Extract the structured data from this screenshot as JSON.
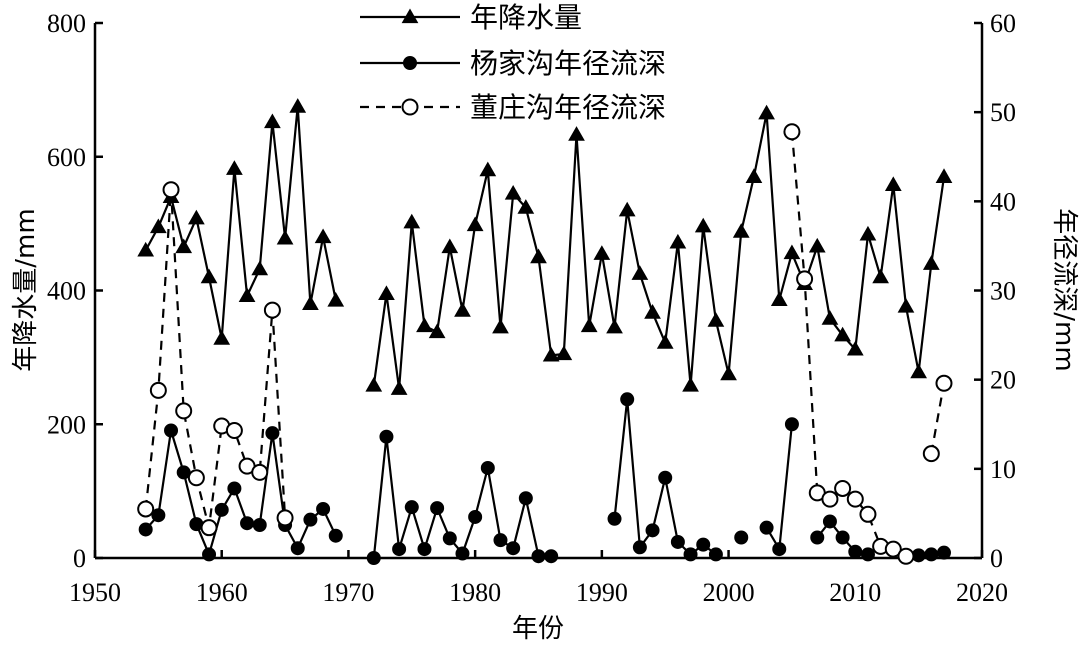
{
  "chart_data": {
    "type": "line",
    "xlabel": "年份",
    "ylabel_left": "年降水量/mm",
    "ylabel_right": "年径流深/mm",
    "xlim": [
      1950,
      2020
    ],
    "ylim_left": [
      0,
      800
    ],
    "ylim_right": [
      0,
      60
    ],
    "x_ticks": [
      "1950",
      "1960",
      "1970",
      "1980",
      "1990",
      "2000",
      "2010",
      "2020"
    ],
    "y_left_ticks": [
      "0",
      "200",
      "400",
      "600",
      "800"
    ],
    "y_right_ticks": [
      "0",
      "10",
      "20",
      "30",
      "40",
      "50",
      "60"
    ],
    "grid": false,
    "legend_position": "top-center",
    "series": [
      {
        "name": "年降水量",
        "axis": "left",
        "marker": "filled-triangle",
        "line": "solid",
        "segments": [
          [
            [
              1954,
              460
            ],
            [
              1955,
              495
            ],
            [
              1956,
              540
            ],
            [
              1957,
              465
            ],
            [
              1958,
              508
            ],
            [
              1959,
              420
            ],
            [
              1960,
              328
            ],
            [
              1961,
              582
            ],
            [
              1962,
              392
            ],
            [
              1963,
              432
            ],
            [
              1964,
              652
            ],
            [
              1965,
              478
            ],
            [
              1966,
              675
            ],
            [
              1967,
              380
            ],
            [
              1968,
              480
            ],
            [
              1969,
              385
            ]
          ],
          [
            [
              1972,
              258
            ],
            [
              1973,
              395
            ],
            [
              1974,
              253
            ],
            [
              1975,
              502
            ],
            [
              1976,
              347
            ],
            [
              1977,
              338
            ],
            [
              1978,
              465
            ],
            [
              1979,
              370
            ],
            [
              1980,
              498
            ],
            [
              1981,
              580
            ],
            [
              1982,
              345
            ],
            [
              1983,
              545
            ],
            [
              1984,
              524
            ],
            [
              1985,
              450
            ],
            [
              1986,
              303
            ],
            [
              1987,
              305
            ],
            [
              1988,
              633
            ],
            [
              1989,
              347
            ],
            [
              1990,
              455
            ],
            [
              1991,
              345
            ],
            [
              1992,
              520
            ],
            [
              1993,
              425
            ],
            [
              1994,
              367
            ],
            [
              1995,
              322
            ],
            [
              1996,
              472
            ],
            [
              1997,
              258
            ],
            [
              1998,
              496
            ],
            [
              1999,
              355
            ],
            [
              2000,
              275
            ],
            [
              2001,
              488
            ],
            [
              2002,
              570
            ],
            [
              2003,
              665
            ],
            [
              2004,
              386
            ],
            [
              2005,
              456
            ],
            [
              2006,
              410
            ],
            [
              2007,
              466
            ],
            [
              2008,
              358
            ],
            [
              2009,
              333
            ],
            [
              2010,
              312
            ],
            [
              2011,
              484
            ],
            [
              2012,
              420
            ],
            [
              2013,
              558
            ],
            [
              2014,
              376
            ],
            [
              2015,
              278
            ],
            [
              2016,
              440
            ],
            [
              2017,
              570
            ]
          ]
        ]
      },
      {
        "name": "杨家沟年径流深",
        "axis": "right",
        "marker": "filled-circle",
        "line": "solid",
        "segments": [
          [
            [
              1954,
              3.2
            ],
            [
              1955,
              4.8
            ],
            [
              1956,
              14.3
            ],
            [
              1957,
              9.6
            ],
            [
              1958,
              3.8
            ],
            [
              1959,
              0.4
            ],
            [
              1960,
              5.4
            ],
            [
              1961,
              7.8
            ],
            [
              1962,
              3.9
            ],
            [
              1963,
              3.7
            ],
            [
              1964,
              14.0
            ],
            [
              1965,
              3.7
            ],
            [
              1966,
              1.1
            ],
            [
              1967,
              4.3
            ],
            [
              1968,
              5.5
            ],
            [
              1969,
              2.5
            ]
          ],
          [
            [
              1972,
              0.0
            ],
            [
              1973,
              13.6
            ],
            [
              1974,
              1.0
            ],
            [
              1975,
              5.7
            ],
            [
              1976,
              1.0
            ],
            [
              1977,
              5.6
            ],
            [
              1978,
              2.2
            ],
            [
              1979,
              0.5
            ],
            [
              1980,
              4.6
            ],
            [
              1981,
              10.1
            ],
            [
              1982,
              2.0
            ],
            [
              1983,
              1.1
            ],
            [
              1984,
              6.7
            ],
            [
              1985,
              0.2
            ],
            [
              1986,
              0.2
            ]
          ],
          [
            [
              1991,
              4.4
            ],
            [
              1992,
              17.8
            ],
            [
              1993,
              1.2
            ],
            [
              1994,
              3.1
            ],
            [
              1995,
              9.0
            ],
            [
              1996,
              1.8
            ],
            [
              1997,
              0.4
            ],
            [
              1998,
              1.5
            ],
            [
              1999,
              0.4
            ]
          ],
          [
            [
              2001,
              2.3
            ]
          ],
          [
            [
              2003,
              3.4
            ],
            [
              2004,
              1.0
            ],
            [
              2005,
              15.0
            ]
          ],
          [
            [
              2007,
              2.3
            ],
            [
              2008,
              4.1
            ],
            [
              2009,
              2.3
            ],
            [
              2010,
              0.7
            ],
            [
              2011,
              0.4
            ]
          ],
          [
            [
              2015,
              0.3
            ],
            [
              2016,
              0.4
            ],
            [
              2017,
              0.6
            ]
          ]
        ]
      },
      {
        "name": "董庄沟年径流深",
        "axis": "right",
        "marker": "open-circle",
        "line": "dashed",
        "segments": [
          [
            [
              1954,
              5.5
            ],
            [
              1955,
              18.8
            ],
            [
              1956,
              41.3
            ],
            [
              1957,
              16.5
            ],
            [
              1958,
              9.0
            ],
            [
              1959,
              3.4
            ],
            [
              1960,
              14.8
            ],
            [
              1961,
              14.3
            ],
            [
              1962,
              10.3
            ],
            [
              1963,
              9.6
            ],
            [
              1964,
              27.8
            ],
            [
              1965,
              4.5
            ]
          ],
          [
            [
              2005,
              47.8
            ],
            [
              2006,
              31.3
            ],
            [
              2007,
              7.3
            ],
            [
              2008,
              6.6
            ],
            [
              2009,
              7.8
            ],
            [
              2010,
              6.6
            ],
            [
              2011,
              4.9
            ],
            [
              2012,
              1.3
            ],
            [
              2013,
              1.0
            ],
            [
              2014,
              0.2
            ]
          ],
          [
            [
              2016,
              11.7
            ],
            [
              2017,
              19.6
            ]
          ]
        ]
      }
    ]
  }
}
